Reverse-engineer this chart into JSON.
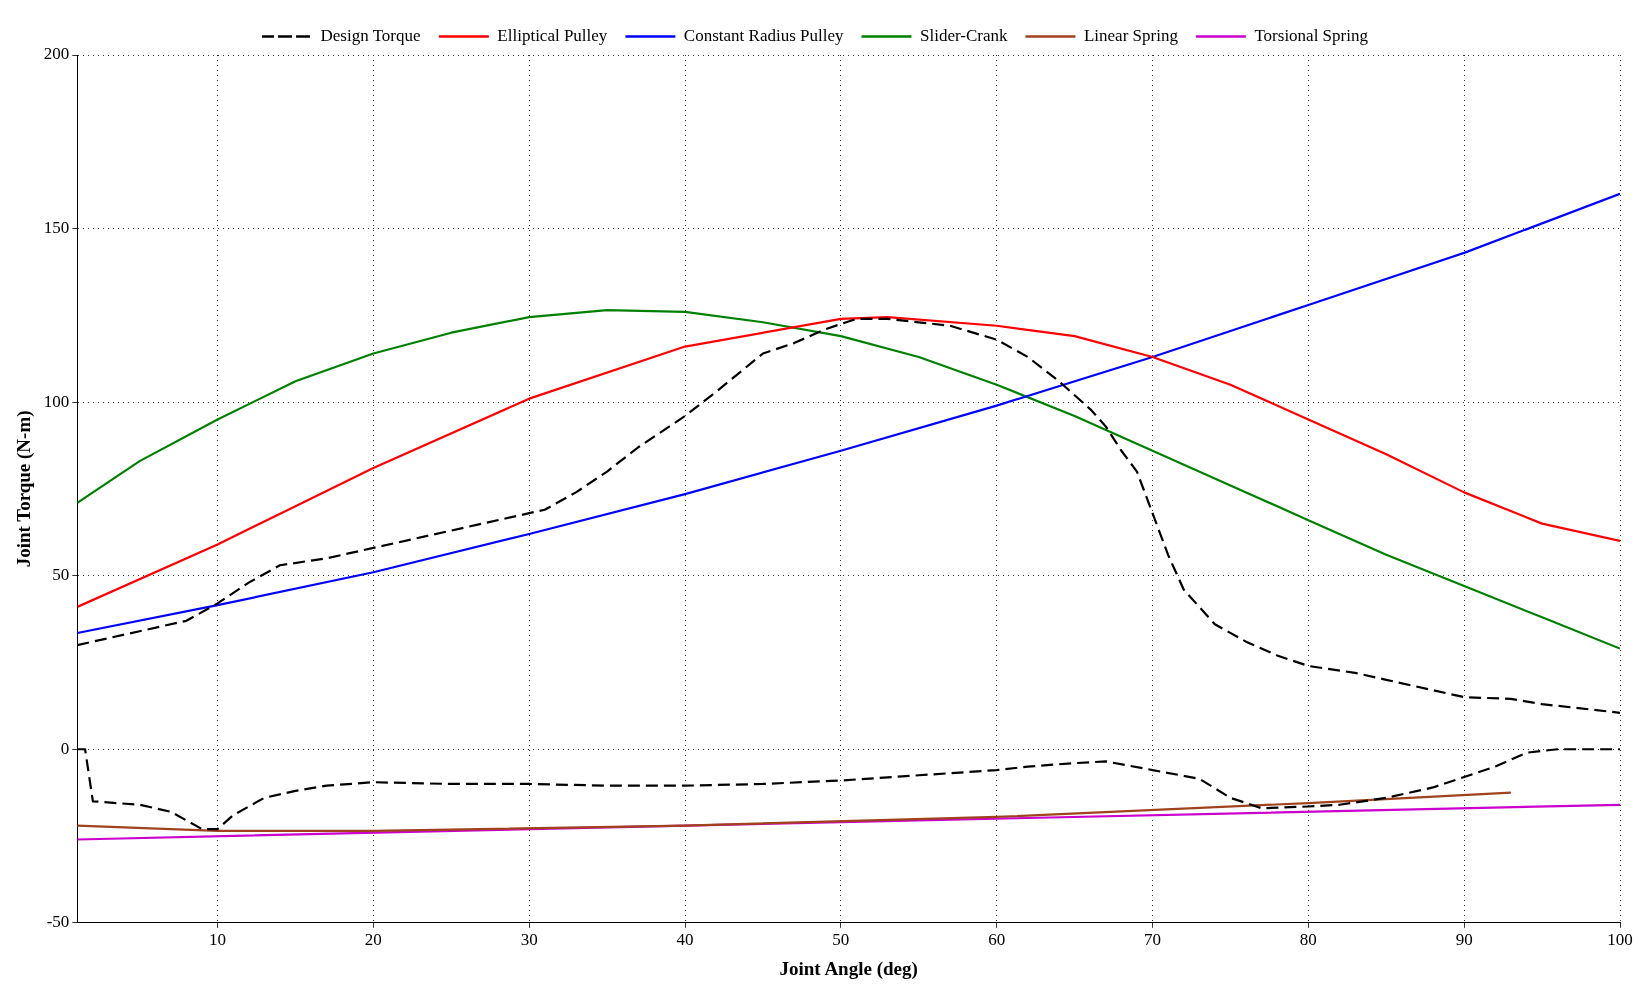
{
  "chart_data": {
    "type": "line",
    "xlabel": "Joint Angle (deg)",
    "ylabel": "Joint Torque (N-m)",
    "xlim": [
      1,
      100
    ],
    "xticks": [
      10,
      20,
      30,
      40,
      50,
      60,
      70,
      80,
      90,
      100
    ],
    "ylim": [
      -50,
      200
    ],
    "yticks": [
      -50,
      0,
      50,
      100,
      150,
      200
    ],
    "grid": true,
    "legend": "top",
    "marker": "none",
    "series": [
      {
        "name": "Design Torque",
        "color": "#000000",
        "line_style": "dashed",
        "x": [
          1,
          5,
          8,
          10,
          12,
          14,
          17,
          20,
          25,
          30,
          31,
          33,
          35,
          37,
          40,
          42,
          45,
          47,
          49,
          51,
          53,
          55,
          57,
          60,
          62,
          64,
          66,
          67,
          68,
          69,
          70,
          71,
          72,
          74,
          76,
          78,
          80,
          83,
          85,
          88,
          90,
          93,
          95,
          97,
          100
        ],
        "values": [
          30,
          34,
          37,
          42,
          48,
          53,
          55,
          58,
          63,
          68,
          69,
          74,
          80,
          87,
          96,
          103,
          114,
          117,
          121,
          124,
          124,
          123,
          122,
          118,
          113,
          106,
          98,
          93,
          86,
          80,
          68,
          56,
          46,
          36,
          31,
          27,
          24,
          22,
          20,
          17,
          15,
          14.5,
          13,
          12,
          10.5
        ]
      },
      {
        "color": "#000000",
        "line_style": "dashed",
        "x": [
          1,
          1.5,
          2,
          5,
          7,
          9,
          10,
          11,
          13,
          15,
          17,
          20,
          25,
          30,
          35,
          40,
          45,
          50,
          55,
          60,
          62,
          65,
          67,
          70,
          73,
          75,
          77,
          80,
          82,
          85,
          88,
          90,
          92,
          94,
          96,
          100
        ],
        "values": [
          0,
          0,
          -15,
          -16,
          -18,
          -23,
          -23,
          -19,
          -14,
          -12,
          -10.5,
          -9.5,
          -10,
          -10,
          -10.5,
          -10.5,
          -10,
          -9,
          -7.5,
          -6,
          -5,
          -4,
          -3.5,
          -6,
          -8.5,
          -14,
          -17,
          -16.5,
          -16,
          -14,
          -11,
          -8,
          -5,
          -1,
          0,
          0
        ]
      },
      {
        "name": "Elliptical Pulley",
        "color": "#ff0000",
        "line_style": "solid",
        "x": [
          1,
          10,
          20,
          30,
          40,
          50,
          53,
          60,
          65,
          70,
          75,
          80,
          85,
          90,
          95,
          100
        ],
        "values": [
          41,
          59,
          81,
          101,
          116,
          124,
          124.5,
          122,
          119,
          113,
          105,
          95,
          85,
          74,
          65,
          60
        ]
      },
      {
        "name": "Constant Radius Pulley",
        "color": "#0000ff",
        "line_style": "solid",
        "x": [
          1,
          10,
          20,
          30,
          40,
          50,
          60,
          70,
          80,
          90,
          100
        ],
        "values": [
          33.5,
          41.5,
          51,
          62,
          73.5,
          86,
          99,
          113,
          128,
          143,
          160
        ]
      },
      {
        "name": "Slider-Crank",
        "color": "#008000",
        "line_style": "solid",
        "x": [
          1,
          5,
          10,
          15,
          20,
          25,
          30,
          35,
          40,
          45,
          50,
          55,
          60,
          65,
          70,
          75,
          80,
          85,
          90,
          95,
          100
        ],
        "values": [
          71,
          83,
          95,
          106,
          114,
          120,
          124.5,
          126.5,
          126,
          123,
          119,
          113,
          105,
          96,
          86,
          76,
          66,
          56,
          47,
          38,
          29
        ]
      },
      {
        "name": "Linear Spring",
        "color": "#a0421c",
        "line_style": "solid",
        "x": [
          1,
          10,
          20,
          40,
          60,
          80,
          93
        ],
        "values": [
          -22,
          -23.5,
          -23.5,
          -22,
          -19.5,
          -15.5,
          -12.5
        ]
      },
      {
        "name": "Torsional Spring",
        "color": "#cc00cc",
        "line_style": "solid",
        "x": [
          1,
          50,
          100
        ],
        "values": [
          -26,
          -21,
          -16
        ]
      }
    ]
  }
}
